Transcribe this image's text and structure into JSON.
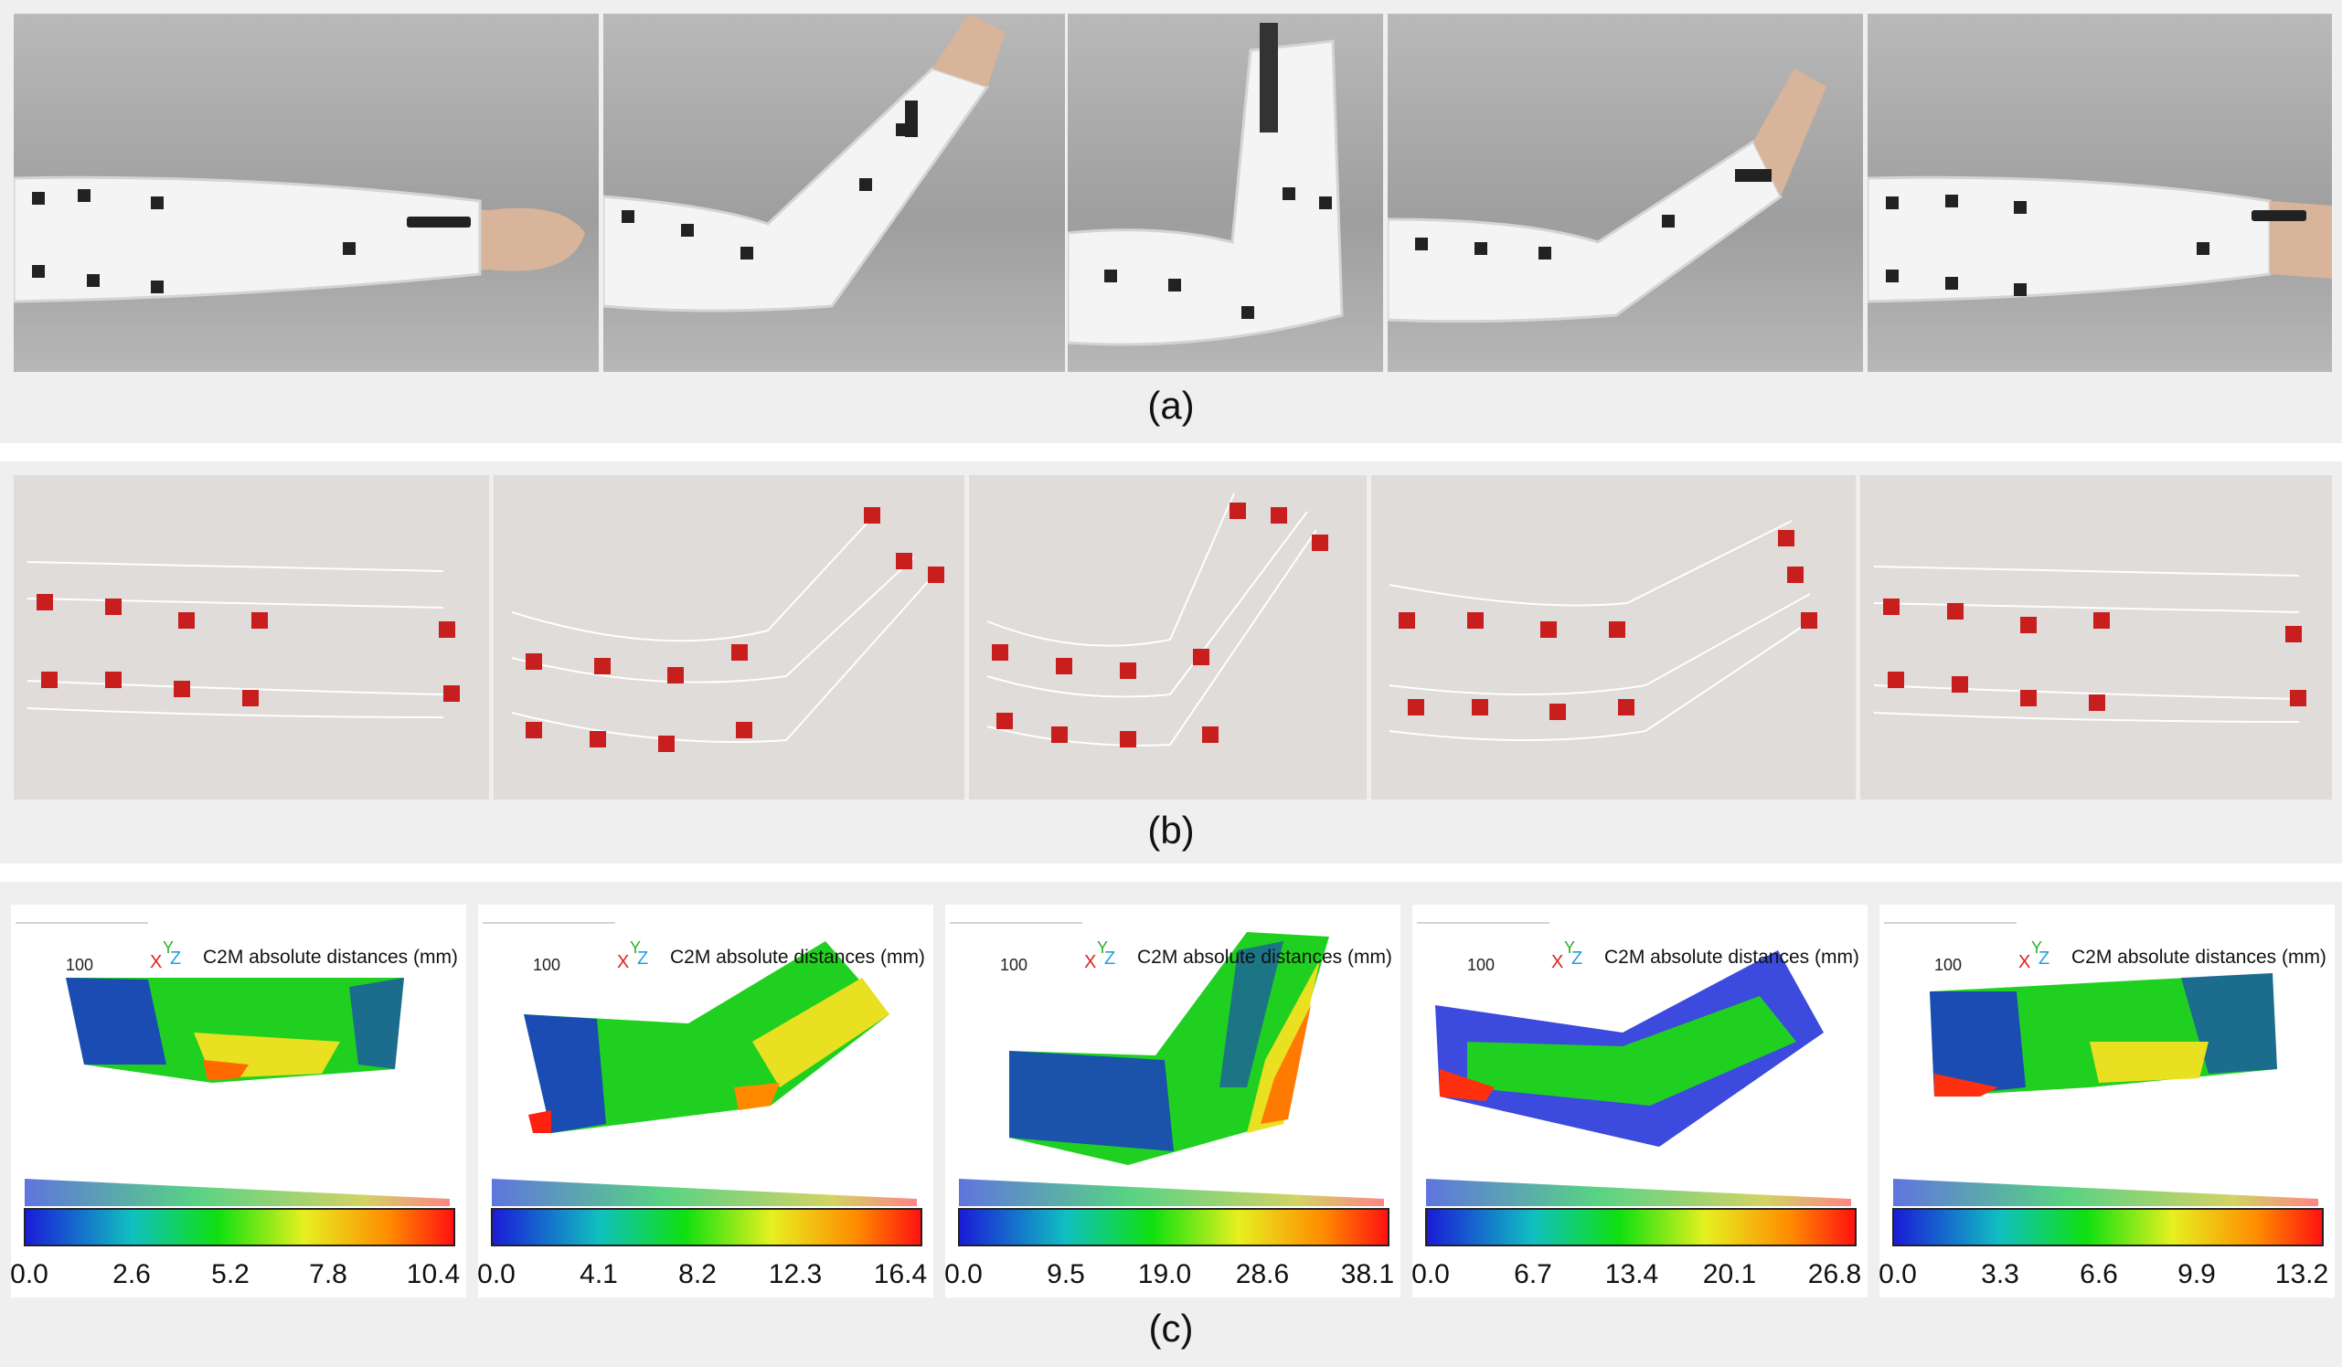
{
  "panels": {
    "a": {
      "caption": "(a)",
      "photo_count": 5
    },
    "b": {
      "caption": "(b)",
      "recon_count": 5
    },
    "c": {
      "caption": "(c)",
      "maps": [
        {
          "title": "C2M absolute distances (mm)",
          "ref": "100",
          "ticks": [
            "0.0",
            "2.6",
            "5.2",
            "7.8",
            "10.4"
          ]
        },
        {
          "title": "C2M absolute distances (mm)",
          "ref": "100",
          "ticks": [
            "0.0",
            "4.1",
            "8.2",
            "12.3",
            "16.4"
          ]
        },
        {
          "title": "C2M absolute distances (mm)",
          "ref": "100",
          "ticks": [
            "0.0",
            "9.5",
            "19.0",
            "28.6",
            "38.1"
          ]
        },
        {
          "title": "C2M absolute distances (mm)",
          "ref": "100",
          "ticks": [
            "0.0",
            "6.7",
            "13.4",
            "20.1",
            "26.8"
          ]
        },
        {
          "title": "C2M absolute distances (mm)",
          "ref": "100",
          "ticks": [
            "0.0",
            "3.3",
            "6.6",
            "9.9",
            "13.2"
          ]
        }
      ],
      "axes": {
        "x": "X",
        "y": "Y",
        "z": "Z"
      }
    }
  },
  "colors": {
    "band": "#efefef",
    "sleeve": "#f4f4f4",
    "sensor": "#c81e1e"
  }
}
